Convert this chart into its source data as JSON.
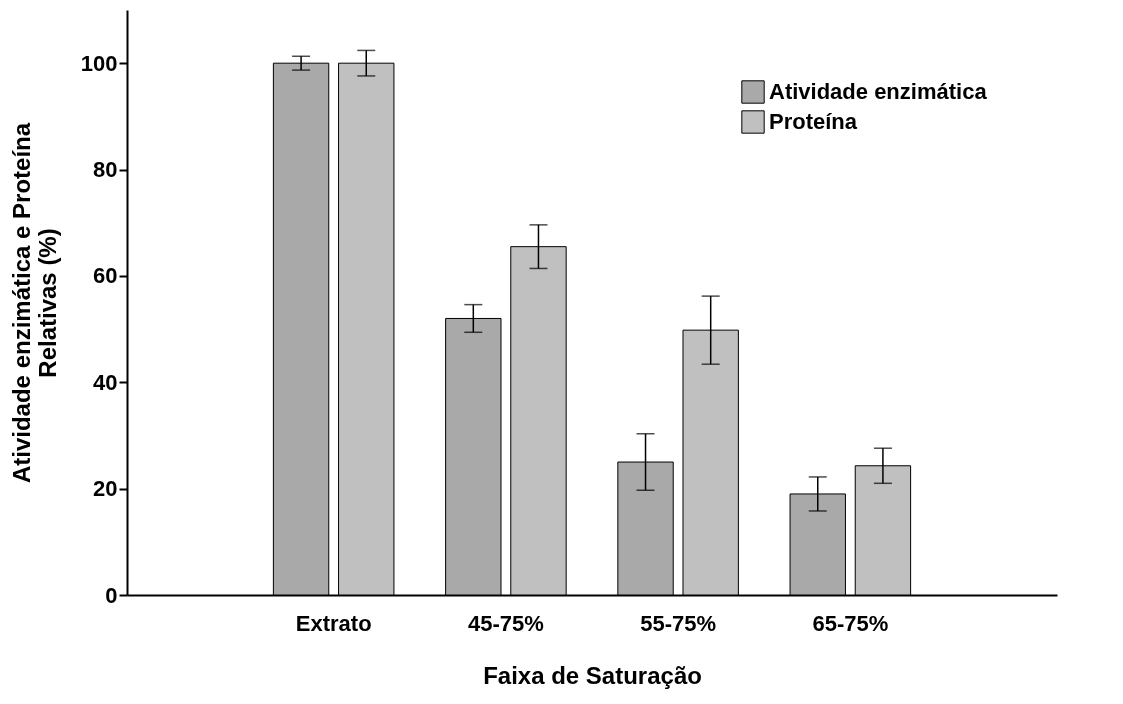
{
  "chart_data": {
    "type": "bar",
    "xlabel": "Faixa de Saturação",
    "ylabel": "Atividade enzimática e Proteína\nRelativas (%)",
    "categories": [
      "Extrato",
      "45-75%",
      "55-75%",
      "65-75%"
    ],
    "series": [
      {
        "name": "Atividade enzimática",
        "color": "#a9a9a9",
        "values": [
          100,
          52,
          25,
          19
        ],
        "errors": [
          1.3,
          2.6,
          5.3,
          3.2
        ]
      },
      {
        "name": "Proteína",
        "color": "#c0c0c0",
        "values": [
          100,
          65.5,
          49.8,
          24.3
        ],
        "errors": [
          2.4,
          4.1,
          6.4,
          3.3
        ]
      }
    ],
    "ylim": [
      0,
      110
    ],
    "yticks": [
      0,
      20,
      40,
      60,
      80,
      100
    ],
    "grid": false,
    "legend": "top right"
  }
}
